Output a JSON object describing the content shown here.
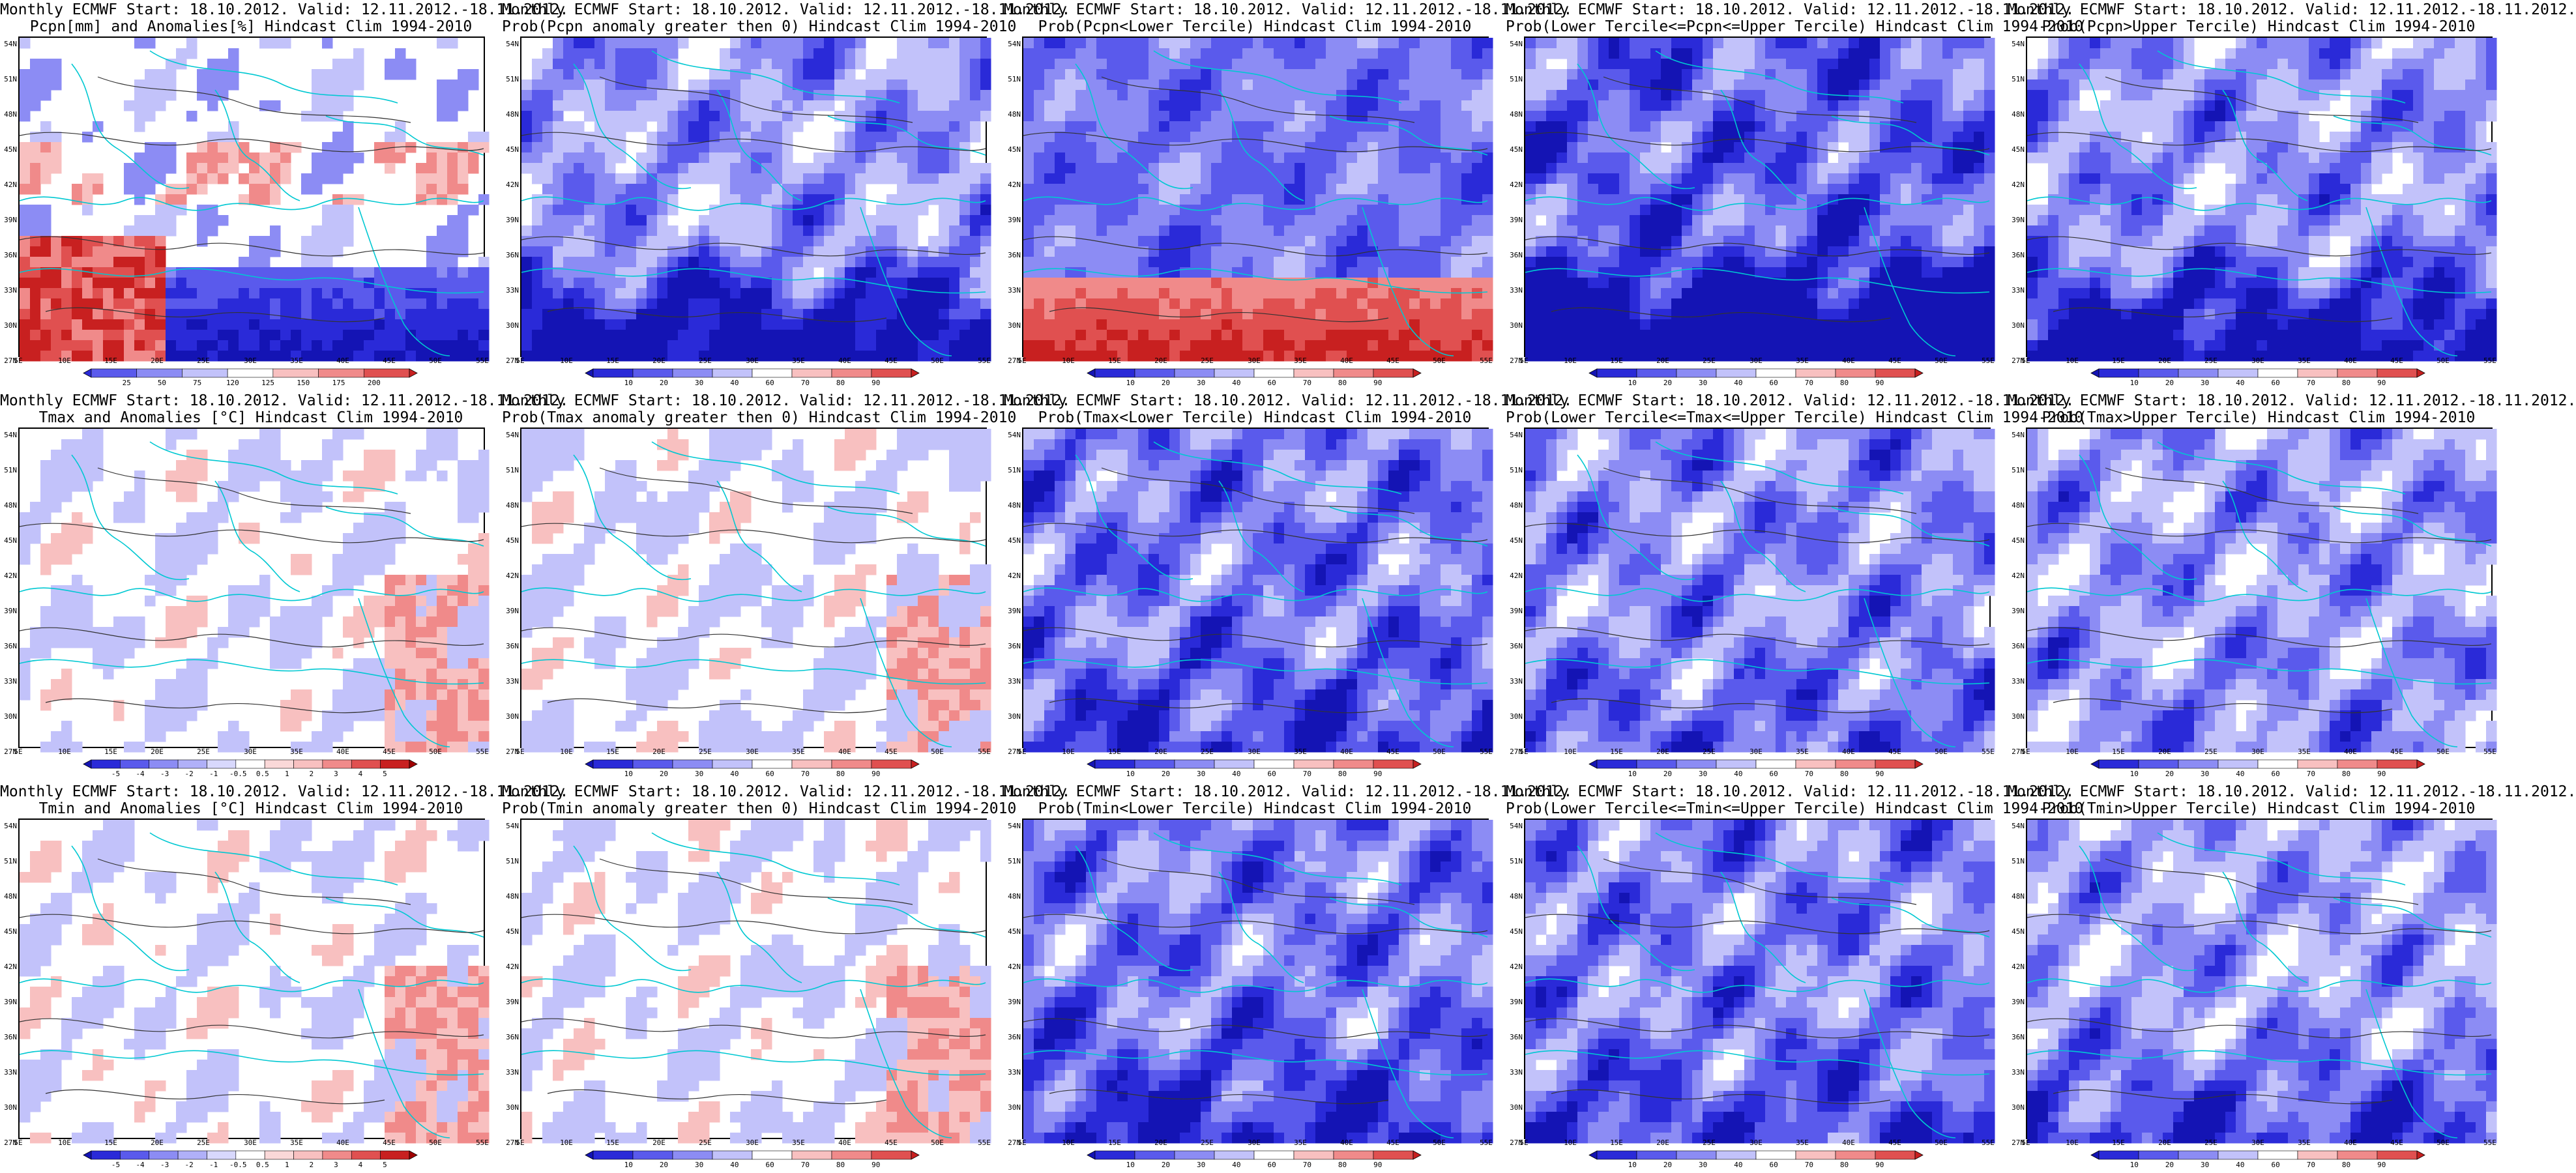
{
  "ticks": {
    "lat": [
      "54N",
      "51N",
      "48N",
      "45N",
      "42N",
      "39N",
      "36N",
      "33N",
      "30N",
      "27N"
    ],
    "lon": [
      "5E",
      "10E",
      "15E",
      "20E",
      "25E",
      "30E",
      "35E",
      "40E",
      "45E",
      "50E",
      "55E"
    ]
  },
  "colorbars": {
    "precip": {
      "labels": [
        "25",
        "50",
        "75",
        "120",
        "125",
        "150",
        "175",
        "200"
      ],
      "colors": [
        "#2a2ad8",
        "#5a5aec",
        "#8c8cf4",
        "#c2c2fa",
        "#ffffff",
        "#f8c0c0",
        "#f08a8a",
        "#e05050",
        "#c82020"
      ]
    },
    "prob": {
      "labels": [
        "10",
        "20",
        "30",
        "40",
        "60",
        "70",
        "80",
        "90"
      ],
      "colors": [
        "#1414b4",
        "#2a2ad8",
        "#5a5aec",
        "#8c8cf4",
        "#c2c2fa",
        "#ffffff",
        "#f8c0c0",
        "#f08a8a",
        "#e05050",
        "#c82020"
      ]
    },
    "anom": {
      "labels": [
        "-5",
        "-4",
        "-3",
        "-2",
        "-1",
        "-0.5",
        "0.5",
        "1",
        "2",
        "3",
        "4",
        "5"
      ],
      "colors": [
        "#1414b4",
        "#2a2ad8",
        "#5a5aec",
        "#8c8cf4",
        "#b0b0f8",
        "#d8d8fc",
        "#ffffff",
        "#fad8d8",
        "#f8c0c0",
        "#f08a8a",
        "#e05050",
        "#c82020",
        "#a00000"
      ]
    }
  },
  "panels": [
    {
      "line1": "Monthly ECMWF Start: 18.10.2012. Valid: 12.11.2012.-18.11.2012.",
      "line2": "Pcpn[mm] and Anomalies[%] Hindcast Clim 1994-2010",
      "colorbar": "precip",
      "scheme": "precip",
      "bias": 0.1,
      "south": 0.9
    },
    {
      "line1": "Monthly ECMWF Start: 18.10.2012. Valid: 12.11.2012.-18.11.2012.",
      "line2": "Prob(Pcpn anomaly greater then 0) Hindcast Clim 1994-2010",
      "colorbar": "prob",
      "scheme": "blue",
      "bias": 0.25,
      "south": 0.95
    },
    {
      "line1": "Monthly ECMWF Start: 18.10.2012. Valid: 12.11.2012.-18.11.2012.",
      "line2": "Prob(Pcpn<Lower Tercile) Hindcast Clim 1994-2010",
      "colorbar": "prob",
      "scheme": "redsouth",
      "bias": 0.5,
      "south": 0.9
    },
    {
      "line1": "Monthly ECMWF Start: 18.10.2012. Valid: 12.11.2012.-18.11.2012.",
      "line2": "Prob(Lower Tercile<=Pcpn<=Upper Tercile) Hindcast Clim 1994-2010",
      "colorbar": "prob",
      "scheme": "blue",
      "bias": 0.6,
      "south": 1.0
    },
    {
      "line1": "Monthly ECMWF Start: 18.10.2012. Valid: 12.11.2012.-18.11.2012.",
      "line2": "Prob(Pcpn>Upper Tercile) Hindcast Clim 1994-2010",
      "colorbar": "prob",
      "scheme": "blue",
      "bias": 0.3,
      "south": 0.85
    },
    {
      "line1": "Monthly ECMWF Start: 18.10.2012. Valid: 12.11.2012.-18.11.2012.",
      "line2": "Tmax and Anomalies [°C] Hindcast Clim 1994-2010",
      "colorbar": "anom",
      "scheme": "mixed",
      "bias": 0.1,
      "south": 0.0
    },
    {
      "line1": "Monthly ECMWF Start: 18.10.2012. Valid: 12.11.2012.-18.11.2012.",
      "line2": "Prob(Tmax anomaly greater then 0) Hindcast Clim 1994-2010",
      "colorbar": "prob",
      "scheme": "mixed",
      "bias": 0.15,
      "south": 0.0
    },
    {
      "line1": "Monthly ECMWF Start: 18.10.2012. Valid: 12.11.2012.-18.11.2012.",
      "line2": "Prob(Tmax<Lower Tercile) Hindcast Clim 1994-2010",
      "colorbar": "prob",
      "scheme": "blue",
      "bias": 0.45,
      "south": 0.3
    },
    {
      "line1": "Monthly ECMWF Start: 18.10.2012. Valid: 12.11.2012.-18.11.2012.",
      "line2": "Prob(Lower Tercile<=Tmax<=Upper Tercile) Hindcast Clim 1994-2010",
      "colorbar": "prob",
      "scheme": "blue",
      "bias": 0.35,
      "south": 0.2
    },
    {
      "line1": "Monthly ECMWF Start: 18.10.2012. Valid: 12.11.2012.-18.11.2012.",
      "line2": "Prob(Tmax>Upper Tercile) Hindcast Clim 1994-2010",
      "colorbar": "prob",
      "scheme": "blue",
      "bias": 0.25,
      "south": 0.1
    },
    {
      "line1": "Monthly ECMWF Start: 18.10.2012. Valid: 12.11.2012.-18.11.2012.",
      "line2": "Tmin and Anomalies [°C] Hindcast Clim 1994-2010",
      "colorbar": "anom",
      "scheme": "mixed",
      "bias": 0.05,
      "south": 0.0
    },
    {
      "line1": "Monthly ECMWF Start: 18.10.2012. Valid: 12.11.2012.-18.11.2012.",
      "line2": "Prob(Tmin anomaly greater then 0) Hindcast Clim 1994-2010",
      "colorbar": "prob",
      "scheme": "mixed",
      "bias": 0.12,
      "south": 0.0
    },
    {
      "line1": "Monthly ECMWF Start: 18.10.2012. Valid: 12.11.2012.-18.11.2012.",
      "line2": "Prob(Tmin<Lower Tercile) Hindcast Clim 1994-2010",
      "colorbar": "prob",
      "scheme": "blue",
      "bias": 0.45,
      "south": 0.4
    },
    {
      "line1": "Monthly ECMWF Start: 18.10.2012. Valid: 12.11.2012.-18.11.2012.",
      "line2": "Prob(Lower Tercile<=Tmin<=Upper Tercile) Hindcast Clim 1994-2010",
      "colorbar": "prob",
      "scheme": "blue",
      "bias": 0.4,
      "south": 0.3
    },
    {
      "line1": "Monthly ECMWF Start: 18.10.2012. Valid: 12.11.2012.-18.11.2012.",
      "line2": "Prob(Tmin>Upper Tercile) Hindcast Clim 1994-2010",
      "colorbar": "prob",
      "scheme": "blue",
      "bias": 0.2,
      "south": 0.5
    }
  ]
}
